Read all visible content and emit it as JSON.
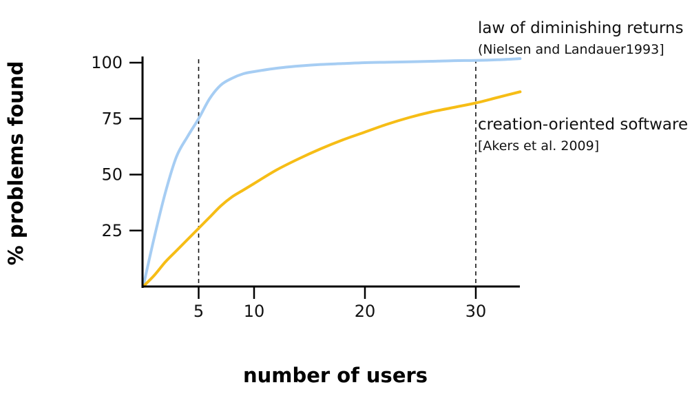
{
  "chart_data": {
    "type": "line",
    "xlabel": "number of users",
    "ylabel": "%  problems found",
    "x_ticks": [
      5,
      10,
      20,
      30
    ],
    "y_ticks": [
      25,
      50,
      75,
      100
    ],
    "xlim": [
      0,
      34
    ],
    "ylim": [
      0,
      100
    ],
    "grid": false,
    "reference_lines_x": [
      5,
      30
    ],
    "series": [
      {
        "name": "law of diminishing returns",
        "citation": "(Nielsen and Landauer1993]",
        "color": "#a6cdf3",
        "x": [
          0,
          1,
          2,
          3,
          4,
          5,
          6,
          7,
          8,
          9,
          10,
          12,
          14,
          16,
          18,
          20,
          22,
          24,
          26,
          28,
          30,
          32,
          34
        ],
        "y": [
          0,
          22,
          42,
          58,
          67,
          75,
          84,
          90,
          93,
          95,
          96,
          97.5,
          98.5,
          99.2,
          99.6,
          100,
          100.2,
          100.4,
          100.6,
          100.9,
          101,
          101.3,
          101.8
        ]
      },
      {
        "name": "creation-oriented software",
        "citation": "[Akers et al. 2009]",
        "color": "#f6bd16",
        "x": [
          0,
          1,
          2,
          3,
          4,
          5,
          6,
          7,
          8,
          9,
          10,
          12,
          14,
          16,
          18,
          20,
          22,
          24,
          26,
          28,
          30,
          32,
          34
        ],
        "y": [
          0,
          5,
          11,
          16,
          21,
          26,
          31,
          36,
          40,
          43,
          46,
          52,
          57,
          61.5,
          65.5,
          69,
          72.5,
          75.5,
          78,
          80,
          82,
          84.5,
          87
        ]
      }
    ]
  }
}
